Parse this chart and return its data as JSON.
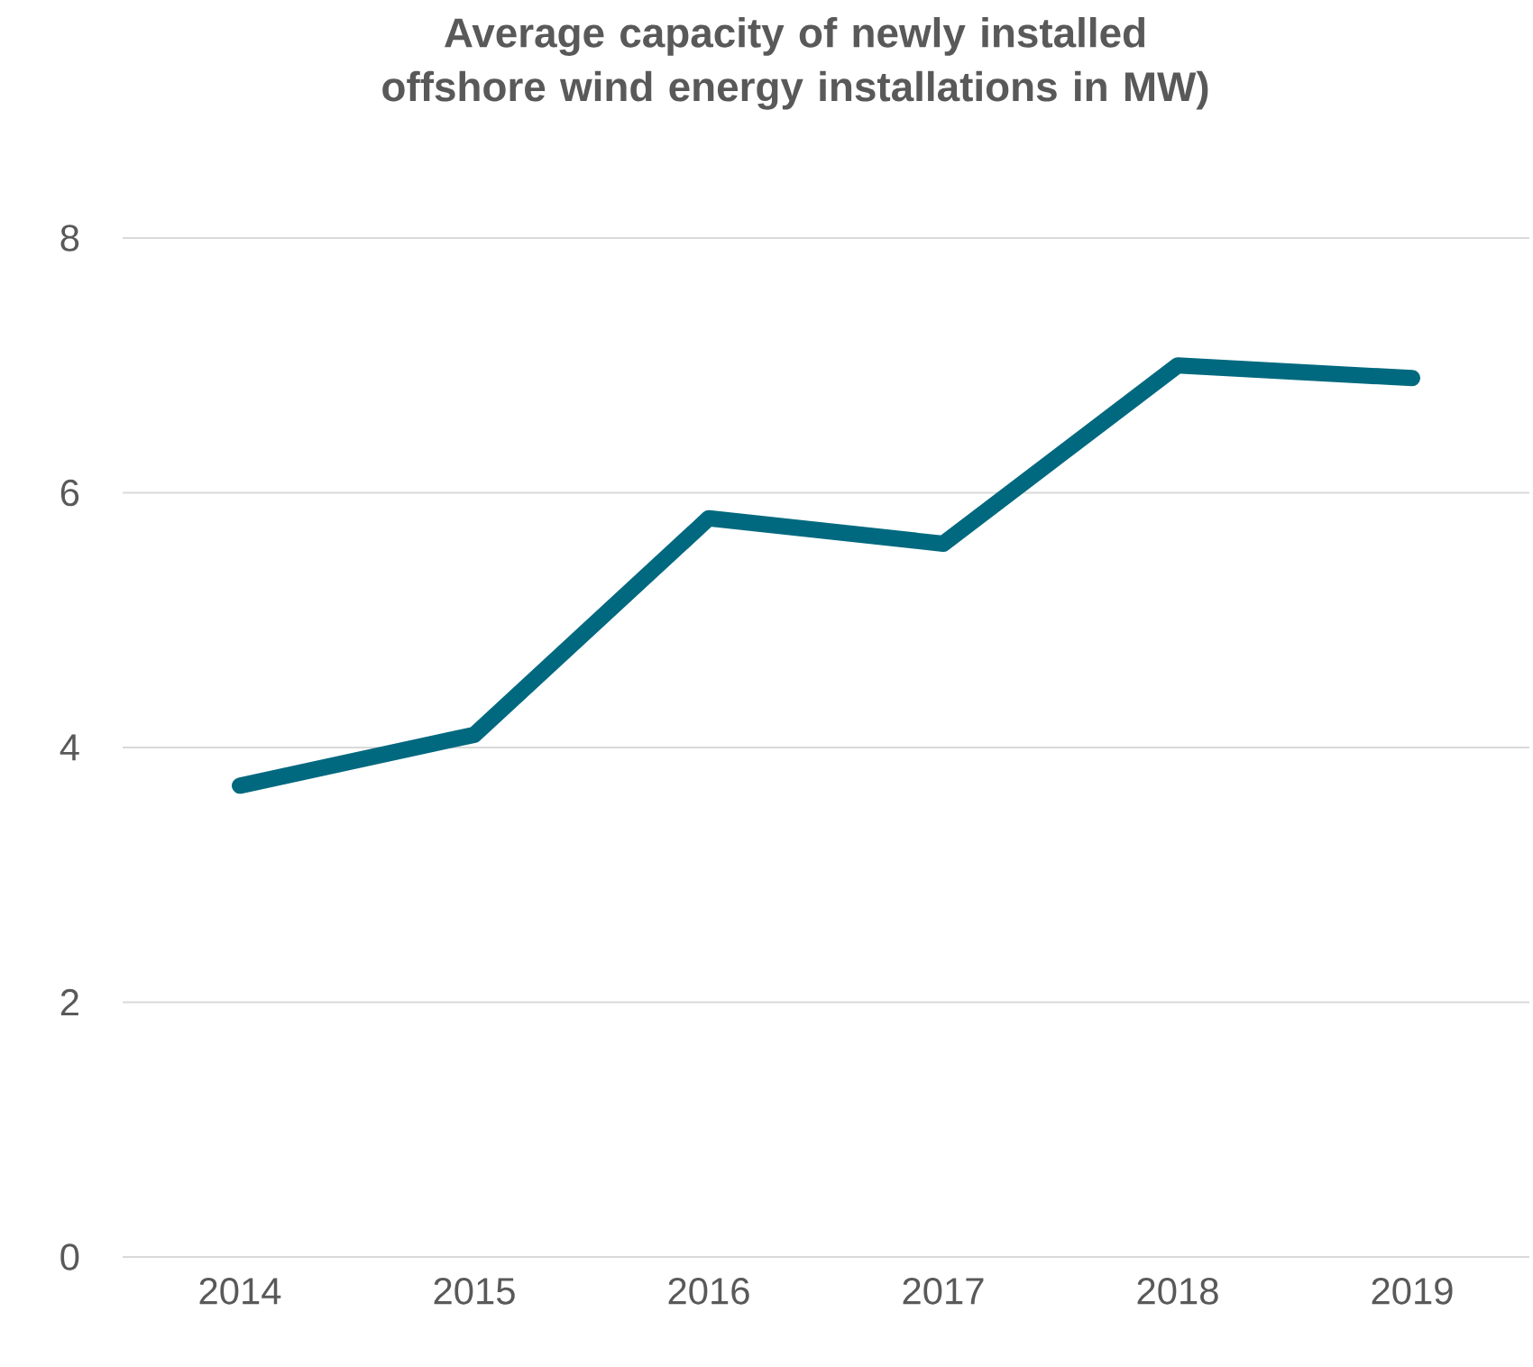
{
  "chart_data": {
    "type": "line",
    "title": "Average capacity of newly installed offshore wind energy installations in MW)",
    "categories": [
      "2014",
      "2015",
      "2016",
      "2017",
      "2018",
      "2019"
    ],
    "series": [
      {
        "color": "#00697f",
        "values": [
          3.7,
          4.1,
          5.8,
          5.6,
          7.0,
          6.9
        ]
      }
    ],
    "ylim": [
      0,
      8
    ],
    "yticks": [
      0,
      2,
      4,
      6,
      8
    ],
    "grid": "y",
    "marker": "none",
    "line_style": "solid"
  }
}
